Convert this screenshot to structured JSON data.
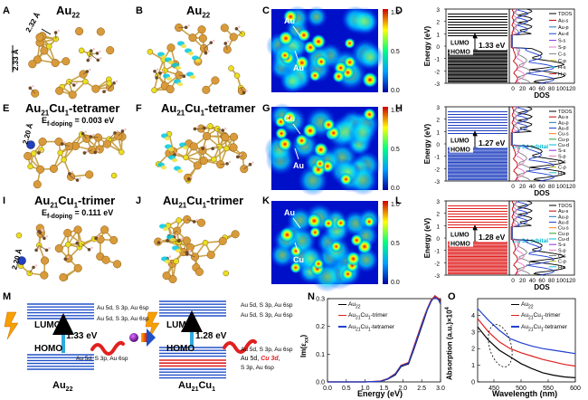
{
  "figure": {
    "panel_letters": [
      "A",
      "B",
      "C",
      "D",
      "E",
      "F",
      "G",
      "H",
      "I",
      "J",
      "K",
      "L",
      "M",
      "N",
      "O"
    ],
    "structures": {
      "A": {
        "title": "Au",
        "title_sub": "22",
        "bond1": "2.32 Å",
        "bond2": "2.33 Å"
      },
      "B": {
        "title": "Au",
        "title_sub": "22"
      },
      "E": {
        "title": "Au",
        "title_sub1": "21",
        "title_mid": "Cu",
        "title_sub2": "1",
        "title_end": "-tetramer",
        "energy": "E",
        "energy_sub": "f-doping",
        "energy_val": " = 0.003 eV",
        "bond": "2.20 Å"
      },
      "F": {
        "title": "Au",
        "title_sub1": "21",
        "title_mid": "Cu",
        "title_sub2": "1",
        "title_end": "-tetramer"
      },
      "I": {
        "title": "Au",
        "title_sub1": "21",
        "title_mid": "Cu",
        "title_sub2": "1",
        "title_end": "-trimer",
        "energy": "E",
        "energy_sub": "f-doping",
        "energy_val": " = 0.111 eV",
        "bond": "2.20 Å"
      },
      "J": {
        "title": "Au",
        "title_sub1": "21",
        "title_mid": "Cu",
        "title_sub2": "1",
        "title_end": "-trimer"
      }
    },
    "maps": {
      "C": {
        "labels": [
          "Au",
          "Au"
        ],
        "colorbar_ticks": [
          "1.0",
          "0.5",
          "0.0"
        ]
      },
      "G": {
        "labels": [
          "Cu",
          "Au"
        ],
        "colorbar_ticks": [
          "1.0",
          "0.5",
          "0.0"
        ]
      },
      "K": {
        "labels": [
          "Au",
          "Cu"
        ],
        "colorbar_ticks": [
          "1.0",
          "0.5",
          "0.0"
        ]
      }
    },
    "dos": {
      "D": {
        "gap": "1.33 eV",
        "lumo": "LUMO",
        "homo": "HOMO",
        "ylabel": "Energy (eV)",
        "xlabel": "DOS",
        "yticks": [
          "3",
          "2",
          "1",
          "0",
          "-1",
          "-2",
          "-3"
        ],
        "xticks": [
          "0",
          "20",
          "40",
          "60",
          "80",
          "100",
          "120"
        ],
        "legend": [
          "TDOS",
          "Au-s",
          "Au-p",
          "Au-d",
          "S-s",
          "S-p",
          "C-s",
          "C-p",
          "H-s",
          "H-p"
        ],
        "legend_colors": [
          "#000000",
          "#c00000",
          "#1f77b4",
          "#2040d0",
          "#8a2be2",
          "#e377c2",
          "#7f7f7f",
          "#bcbd22",
          "#17becf",
          "#d62728"
        ],
        "level_color": "#000000"
      },
      "H": {
        "gap": "1.27 eV",
        "lumo": "LUMO",
        "homo": "HOMO",
        "orbital": "Cu-3d orbital",
        "ylabel": "Energy (eV)",
        "xlabel": "DOS",
        "yticks": [
          "3",
          "2",
          "1",
          "0",
          "-1",
          "-2",
          "-3"
        ],
        "xticks": [
          "0",
          "20",
          "40",
          "60",
          "80",
          "100",
          "120"
        ],
        "legend": [
          "TDOS",
          "Au-s",
          "Au-p",
          "Au-d",
          "Cu-s",
          "Cu-p",
          "Cu-d",
          "S-s",
          "S-p",
          "C-s",
          "C-p",
          "H-s"
        ],
        "legend_colors": [
          "#000000",
          "#c00000",
          "#1f77b4",
          "#2040d0",
          "#ff7f0e",
          "#2ca02c",
          "#00bcd4",
          "#8a2be2",
          "#e377c2",
          "#7f7f7f",
          "#bcbd22",
          "#17becf"
        ],
        "level_color": "#1f3fbf"
      },
      "L": {
        "gap": "1.28 eV",
        "lumo": "LUMO",
        "homo": "HOMO",
        "orbital": "Cu-3d orbital",
        "ylabel": "Energy (eV)",
        "xlabel": "DOS",
        "yticks": [
          "3",
          "2",
          "1",
          "0",
          "-1",
          "-2",
          "-3"
        ],
        "xticks": [
          "0",
          "20",
          "40",
          "60",
          "80",
          "100",
          "120"
        ],
        "legend": [
          "TDOS",
          "Au-s",
          "Au-p",
          "Au-d",
          "Cu-s",
          "Cu-p",
          "Cu-d",
          "S-s",
          "S-p",
          "C-s",
          "C-p",
          "H-s"
        ],
        "legend_colors": [
          "#000000",
          "#c00000",
          "#1f77b4",
          "#2040d0",
          "#ff7f0e",
          "#2ca02c",
          "#00bcd4",
          "#8a2be2",
          "#e377c2",
          "#7f7f7f",
          "#bcbd22",
          "#17becf"
        ],
        "level_color": "#e02020"
      }
    },
    "scheme": {
      "lumo": "LUMO",
      "homo": "HOMO",
      "left_gap": "1.33 eV",
      "right_gap": "1.28 eV",
      "left_levels": [
        "Au 5d, S 3p, Au 6sp",
        "Au 5d, S 3p, Au 6sp"
      ],
      "left_homo": "Au 5d, S 3p, Au 6sp",
      "right_levels": [
        "Au 5d, S 3p, Au 6sp",
        "Au 5d, S 3p, Au 6sp"
      ],
      "right_homo1": "Au 5d, S 3p, Au 6sp",
      "right_homo2a": "Au 5d, ",
      "right_homo2b": "Cu 3d",
      "right_homo2c": ",",
      "right_homo3": "S 3p, Au 6sp",
      "left_name": "Au",
      "left_name_sub": "22",
      "right_name": "Au",
      "right_name_sub1": "21",
      "right_name_mid": "Cu",
      "right_name_sub2": "1"
    }
  },
  "chart_data": [
    {
      "panel": "N",
      "type": "line",
      "xlabel": "Energy (eV)",
      "ylabel": "Im(ε",
      "ylabel_sub": "xx",
      "ylabel_end": ")",
      "xlim": [
        0.0,
        3.0
      ],
      "ylim": [
        0.0,
        0.3
      ],
      "xticks": [
        "0.0",
        "0.5",
        "1.0",
        "1.5",
        "2.0",
        "2.5",
        "3.0"
      ],
      "yticks": [
        "0.0",
        "0.1",
        "0.2",
        "0.3"
      ],
      "legend_placement": "top-left",
      "series": [
        {
          "name": "Au22",
          "color": "#000000",
          "x": [
            0.0,
            1.0,
            1.4,
            1.6,
            1.8,
            1.95,
            2.05,
            2.15,
            2.3,
            2.45,
            2.55,
            2.65,
            2.75,
            2.85,
            2.95,
            3.0
          ],
          "y": [
            0.0,
            0.0,
            0.002,
            0.01,
            0.025,
            0.055,
            0.06,
            0.065,
            0.12,
            0.18,
            0.22,
            0.26,
            0.29,
            0.31,
            0.3,
            0.29
          ]
        },
        {
          "name": "Au21Cu1-trimer",
          "color": "#e02020",
          "x": [
            0.0,
            1.0,
            1.4,
            1.6,
            1.8,
            1.95,
            2.05,
            2.15,
            2.3,
            2.45,
            2.55,
            2.65,
            2.75,
            2.85,
            2.95,
            3.0
          ],
          "y": [
            0.0,
            0.0,
            0.003,
            0.012,
            0.03,
            0.06,
            0.065,
            0.07,
            0.13,
            0.19,
            0.23,
            0.265,
            0.295,
            0.31,
            0.3,
            0.28
          ]
        },
        {
          "name": "Au21Cu1-tetramer",
          "color": "#2040d0",
          "x": [
            0.0,
            1.0,
            1.4,
            1.6,
            1.8,
            1.95,
            2.05,
            2.15,
            2.3,
            2.45,
            2.55,
            2.65,
            2.75,
            2.85,
            2.95,
            3.0
          ],
          "y": [
            0.0,
            0.0,
            0.002,
            0.011,
            0.028,
            0.058,
            0.062,
            0.068,
            0.125,
            0.185,
            0.225,
            0.262,
            0.292,
            0.305,
            0.295,
            0.28
          ]
        }
      ],
      "legend_labels": [
        {
          "a": "Au",
          "b": "22",
          "c": "",
          "d": "",
          "e": ""
        },
        {
          "a": "Au",
          "b": "21",
          "c": "Cu",
          "d": "1",
          "e": "-trimer"
        },
        {
          "a": "Au",
          "b": "21",
          "c": "Cu",
          "d": "1",
          "e": "-tetramer"
        }
      ]
    },
    {
      "panel": "O",
      "type": "line",
      "xlabel": "Wavelength (nm)",
      "ylabel": "Absorption (a.u.)×10",
      "ylabel_sup": "4",
      "xlim": [
        420,
        600
      ],
      "ylim": [
        0,
        5
      ],
      "xticks": [
        "450",
        "500",
        "550",
        "600"
      ],
      "yticks": [
        "0",
        "1",
        "2",
        "3",
        "4"
      ],
      "legend_placement": "top-right",
      "series": [
        {
          "name": "Au22",
          "color": "#000000",
          "x": [
            420,
            440,
            460,
            480,
            500,
            520,
            540,
            560,
            580,
            600
          ],
          "y": [
            3.3,
            2.5,
            1.9,
            1.5,
            1.1,
            0.8,
            0.55,
            0.4,
            0.3,
            0.25
          ]
        },
        {
          "name": "Au21Cu1-trimer",
          "color": "#e02020",
          "x": [
            420,
            440,
            460,
            480,
            500,
            520,
            540,
            560,
            580,
            600
          ],
          "y": [
            3.8,
            3.0,
            2.4,
            2.0,
            1.75,
            1.55,
            1.35,
            1.2,
            1.05,
            0.95
          ]
        },
        {
          "name": "Au21Cu1-tetramer",
          "color": "#2040d0",
          "x": [
            420,
            440,
            460,
            480,
            500,
            520,
            540,
            560,
            580,
            600
          ],
          "y": [
            4.4,
            3.7,
            3.1,
            2.6,
            2.35,
            2.15,
            2.0,
            1.9,
            1.8,
            1.7
          ]
        }
      ],
      "legend_labels": [
        {
          "a": "Au",
          "b": "22",
          "c": "",
          "d": "",
          "e": ""
        },
        {
          "a": "Au",
          "b": "21",
          "c": "Cu",
          "d": "1",
          "e": "-trimer"
        },
        {
          "a": "Au",
          "b": "21",
          "c": "Cu",
          "d": "1",
          "e": "-tetramer"
        }
      ]
    }
  ]
}
